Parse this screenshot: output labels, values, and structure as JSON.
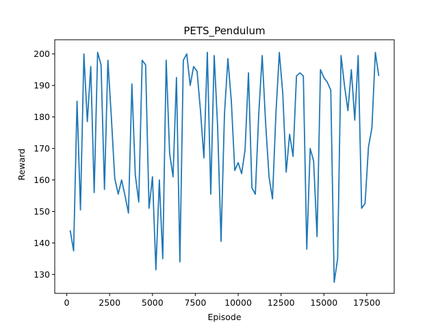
{
  "chart_data": {
    "type": "line",
    "title": "PETS_Pendulum",
    "xlabel": "Episode",
    "ylabel": "Reward",
    "xlim": [
      -700,
      19100
    ],
    "ylim": [
      124,
      204.5
    ],
    "grid": false,
    "x_ticks": [
      0,
      2500,
      5000,
      7500,
      10000,
      12500,
      15000,
      17500
    ],
    "x_tick_labels": [
      "0",
      "2500",
      "5000",
      "7500",
      "10000",
      "12500",
      "15000",
      "17500"
    ],
    "y_ticks": [
      130,
      140,
      150,
      160,
      170,
      180,
      190,
      200
    ],
    "y_tick_labels": [
      "130",
      "140",
      "150",
      "160",
      "170",
      "180",
      "190",
      "200"
    ],
    "series": [
      {
        "color": "#1f77b4",
        "x": [
          200,
          400,
          600,
          800,
          1000,
          1200,
          1400,
          1600,
          1800,
          2000,
          2200,
          2400,
          2600,
          2800,
          3000,
          3200,
          3400,
          3600,
          3800,
          4000,
          4200,
          4400,
          4600,
          4800,
          5000,
          5200,
          5400,
          5600,
          5800,
          6000,
          6200,
          6400,
          6600,
          6800,
          7000,
          7200,
          7400,
          7600,
          7800,
          8000,
          8200,
          8400,
          8600,
          8800,
          9000,
          9200,
          9400,
          9600,
          9800,
          10000,
          10200,
          10400,
          10600,
          10800,
          11000,
          11200,
          11400,
          11600,
          11800,
          12000,
          12200,
          12400,
          12600,
          12800,
          13000,
          13200,
          13400,
          13600,
          13800,
          14000,
          14200,
          14400,
          14600,
          14800,
          15000,
          15200,
          15400,
          15600,
          15800,
          16000,
          16200,
          16400,
          16600,
          16800,
          17000,
          17200,
          17400,
          17600,
          17800,
          18000,
          18200
        ],
        "y": [
          144.0,
          137.5,
          185.0,
          150.5,
          200.0,
          178.5,
          196.0,
          156.0,
          200.5,
          196.5,
          157.0,
          198.0,
          180.0,
          160.5,
          155.5,
          160.0,
          155.0,
          149.5,
          190.5,
          161.5,
          153.0,
          198.0,
          196.5,
          151.0,
          161.0,
          131.5,
          160.0,
          135.0,
          198.0,
          168.5,
          161.0,
          192.5,
          134.0,
          198.0,
          200.0,
          190.0,
          196.0,
          194.5,
          182.0,
          167.0,
          200.5,
          155.5,
          199.5,
          177.0,
          140.5,
          181.0,
          198.5,
          185.0,
          163.0,
          165.5,
          162.0,
          169.5,
          194.0,
          157.5,
          155.5,
          181.0,
          199.5,
          178.0,
          161.0,
          154.0,
          181.0,
          200.5,
          187.5,
          162.5,
          174.5,
          167.5,
          193.0,
          194.0,
          193.0,
          138.0,
          170.0,
          166.0,
          142.0,
          195.0,
          192.5,
          191.0,
          188.5,
          127.5,
          135.0,
          199.5,
          190.0,
          182.0,
          195.0,
          179.0,
          199.5,
          151.0,
          152.5,
          170.5,
          176.5,
          200.5,
          193.0
        ]
      }
    ]
  }
}
